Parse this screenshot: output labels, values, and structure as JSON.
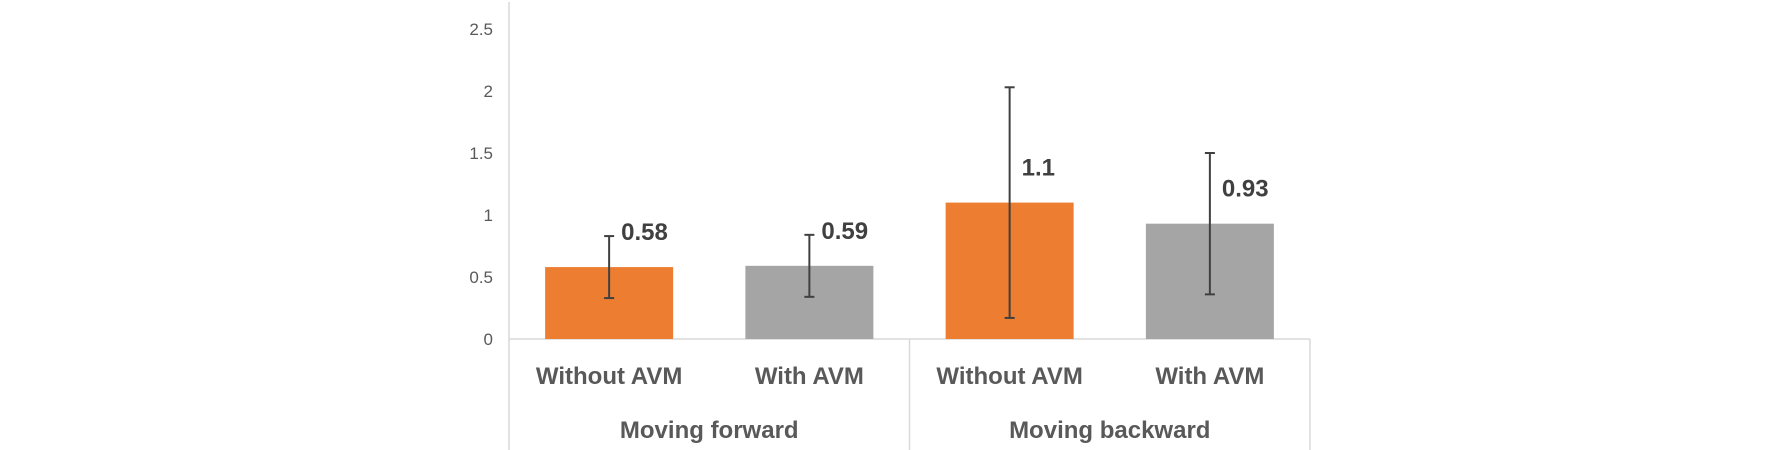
{
  "chart_data": {
    "type": "bar",
    "groups": [
      {
        "label": "Moving forward",
        "categories": [
          "Without AVM",
          "With AVM"
        ]
      },
      {
        "label": "Moving backward",
        "categories": [
          "Without AVM",
          "With AVM"
        ]
      }
    ],
    "bars": [
      {
        "group": "Moving forward",
        "category": "Without AVM",
        "value": 0.58,
        "label": "0.58",
        "error_low": 0.33,
        "error_high": 0.83,
        "color": "#ED7D31"
      },
      {
        "group": "Moving forward",
        "category": "With AVM",
        "value": 0.59,
        "label": "0.59",
        "error_low": 0.34,
        "error_high": 0.84,
        "color": "#A5A5A5"
      },
      {
        "group": "Moving backward",
        "category": "Without AVM",
        "value": 1.1,
        "label": "1.1",
        "error_low": 0.17,
        "error_high": 2.03,
        "color": "#ED7D31"
      },
      {
        "group": "Moving backward",
        "category": "With AVM",
        "value": 0.93,
        "label": "0.93",
        "error_low": 0.36,
        "error_high": 1.5,
        "color": "#A5A5A5"
      }
    ],
    "yticks": [
      "0",
      "0.5",
      "1",
      "1.5",
      "2",
      "2.5"
    ],
    "ylim": [
      0,
      2.5
    ],
    "grid": false
  }
}
